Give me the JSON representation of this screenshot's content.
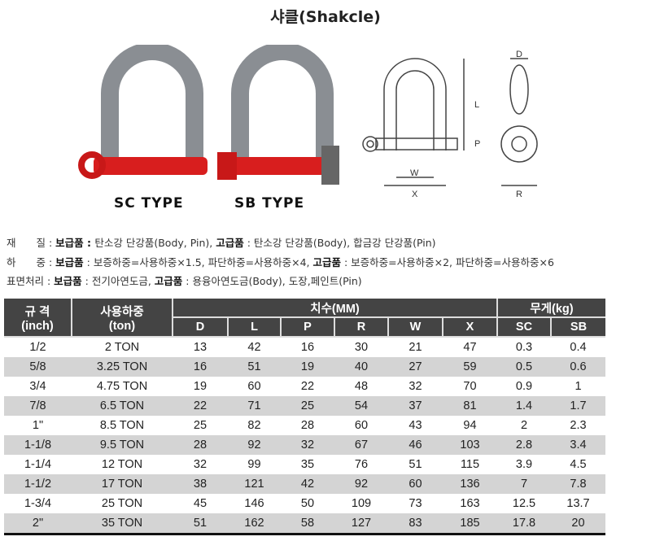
{
  "title": "샤클(Shakcle)",
  "photos": {
    "sc_label": "SC TYPE",
    "sb_label": "SB TYPE",
    "colors": {
      "body": "#8a8e93",
      "pin": "#d81e1e"
    }
  },
  "diagram_labels": {
    "d": "D",
    "l": "L",
    "p": "P",
    "w": "W",
    "x": "X",
    "r": "R"
  },
  "specs": [
    {
      "label": "재　　질 : ",
      "std": "보급품 : ",
      "std_text": "탄소강 단강품(Body, Pin), ",
      "hi": "고급품",
      "hi_text": " : 탄소강 단강품(Body), 합금강 단강품(Pin)"
    },
    {
      "label": "하　　중 : ",
      "std": "보급품",
      "std_text": " : 보증하중=사용하중×1.5, 파단하중=사용하중×4, ",
      "hi": "고급품",
      "hi_text": " : 보증하중=사용하중×2, 파단하중=사용하중×6"
    },
    {
      "label": "표면처리 : ",
      "std": "보급품",
      "std_text": " : 전기아연도금, ",
      "hi": "고급품",
      "hi_text": " : 용융아연도금(Body), 도장,페인트(Pin)"
    }
  ],
  "table": {
    "h_size": "규 격",
    "h_size2": "(inch)",
    "h_load": "사용하중",
    "h_load2": "(ton)",
    "h_dim": "치수(MM)",
    "h_weight": "무게(kg)",
    "sub": [
      "D",
      "L",
      "P",
      "R",
      "W",
      "X",
      "SC",
      "SB"
    ],
    "rows": [
      [
        "1/2",
        "2 TON",
        "13",
        "42",
        "16",
        "30",
        "21",
        "47",
        "0.3",
        "0.4"
      ],
      [
        "5/8",
        "3.25 TON",
        "16",
        "51",
        "19",
        "40",
        "27",
        "59",
        "0.5",
        "0.6"
      ],
      [
        "3/4",
        "4.75 TON",
        "19",
        "60",
        "22",
        "48",
        "32",
        "70",
        "0.9",
        "1"
      ],
      [
        "7/8",
        "6.5 TON",
        "22",
        "71",
        "25",
        "54",
        "37",
        "81",
        "1.4",
        "1.7"
      ],
      [
        "1\"",
        "8.5 TON",
        "25",
        "82",
        "28",
        "60",
        "43",
        "94",
        "2",
        "2.3"
      ],
      [
        "1-1/8",
        "9.5 TON",
        "28",
        "92",
        "32",
        "67",
        "46",
        "103",
        "2.8",
        "3.4"
      ],
      [
        "1-1/4",
        "12 TON",
        "32",
        "99",
        "35",
        "76",
        "51",
        "115",
        "3.9",
        "4.5"
      ],
      [
        "1-1/2",
        "17 TON",
        "38",
        "121",
        "42",
        "92",
        "60",
        "136",
        "7",
        "7.8"
      ],
      [
        "1-3/4",
        "25 TON",
        "45",
        "146",
        "50",
        "109",
        "73",
        "163",
        "12.5",
        "13.7"
      ],
      [
        "2\"",
        "35 TON",
        "51",
        "162",
        "58",
        "127",
        "83",
        "185",
        "17.8",
        "20"
      ]
    ]
  }
}
